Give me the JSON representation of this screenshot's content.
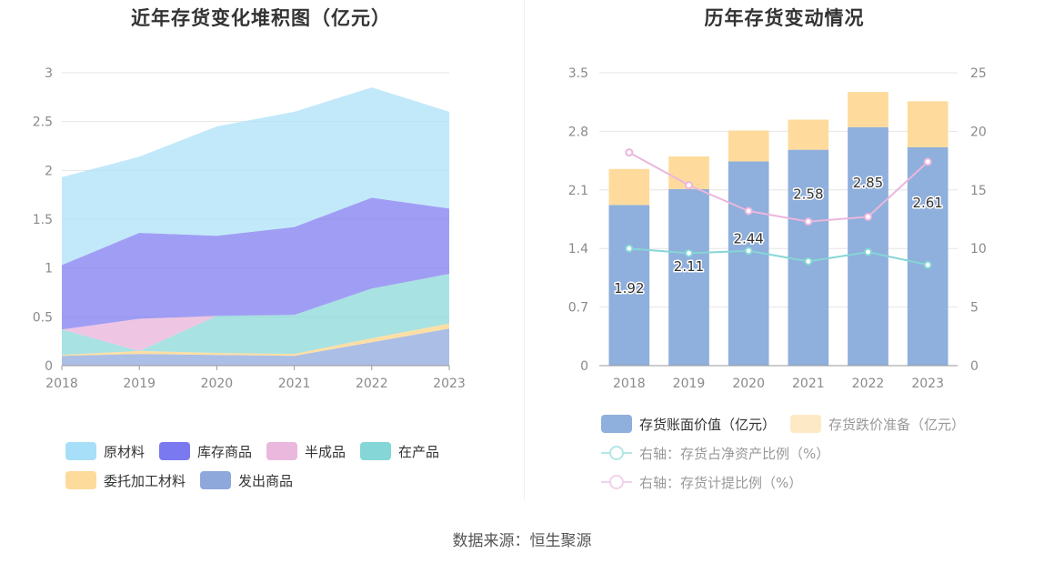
{
  "left_chart": {
    "title": "近年存货变化堆积图（亿元）",
    "legend_rows": [
      [
        "原材料",
        "库存商品",
        "半成品",
        "在产品"
      ],
      [
        "委托加工材料",
        "发出商品"
      ]
    ]
  },
  "right_chart": {
    "title": "历年存货变动情况",
    "legend": {
      "book_value": "存货账面价值（亿元）",
      "reserve": "存货跌价准备（亿元）",
      "ratio_net_assets": "右轴：存货占净资产比例（%）",
      "ratio_provision": "右轴：存货计提比例（%）"
    }
  },
  "source": "数据来源：恒生聚源",
  "colors": {
    "raw_materials": "#a8dff8",
    "finished_goods": "#7b79f0",
    "semi_finished": "#eab8dc",
    "wip": "#85d6d6",
    "outsourced": "#fddb9b",
    "shipped": "#8fa8dc",
    "bar_book": "#8fafdc",
    "bar_reserve": "#fedb9c",
    "line_net_assets": "#86d6d6",
    "line_provision": "#ebb6dd"
  },
  "chart_data": [
    {
      "type": "area",
      "stacked": true,
      "title": "近年存货变化堆积图（亿元）",
      "categories": [
        "2018",
        "2019",
        "2020",
        "2021",
        "2022",
        "2023"
      ],
      "ylim": [
        0,
        3
      ],
      "yticks": [
        "0",
        "0.5",
        "1",
        "1.5",
        "2",
        "2.5",
        "3"
      ],
      "grid": true,
      "legend_position": "bottom",
      "series": [
        {
          "name": "发出商品",
          "values": [
            0.1,
            0.12,
            0.11,
            0.1,
            0.24,
            0.38
          ]
        },
        {
          "name": "委托加工材料",
          "values": [
            0.01,
            0.03,
            0.02,
            0.02,
            0.04,
            0.05
          ]
        },
        {
          "name": "在产品",
          "values": [
            0.26,
            0.0,
            0.38,
            0.4,
            0.51,
            0.51
          ]
        },
        {
          "name": "半成品",
          "values": [
            0.0,
            0.33,
            0.0,
            0.0,
            0.0,
            0.0
          ]
        },
        {
          "name": "库存商品",
          "values": [
            0.66,
            0.88,
            0.82,
            0.9,
            0.93,
            0.67
          ]
        },
        {
          "name": "原材料",
          "values": [
            0.9,
            0.78,
            1.12,
            1.18,
            1.13,
            0.99
          ]
        }
      ]
    },
    {
      "type": "bar",
      "stacked": true,
      "title": "历年存货变动情况",
      "categories": [
        "2018",
        "2019",
        "2020",
        "2021",
        "2022",
        "2023"
      ],
      "ylim": [
        0,
        3.5
      ],
      "yticks": [
        "0",
        "0.7",
        "1.4",
        "2.1",
        "2.8",
        "3.5"
      ],
      "y2lim": [
        0,
        25
      ],
      "y2ticks": [
        "0",
        "5",
        "10",
        "15",
        "20",
        "25"
      ],
      "grid": true,
      "legend_position": "bottom",
      "series": [
        {
          "name": "存货账面价值（亿元）",
          "axis": "left",
          "values": [
            1.92,
            2.11,
            2.44,
            2.58,
            2.85,
            2.61
          ],
          "labels": [
            "1.92",
            "2.11",
            "2.44",
            "2.58",
            "2.85",
            "2.61"
          ]
        },
        {
          "name": "存货跌价准备（亿元）",
          "axis": "left",
          "values": [
            0.43,
            0.39,
            0.37,
            0.36,
            0.42,
            0.55
          ]
        },
        {
          "name": "右轴：存货占净资产比例（%）",
          "type": "line",
          "axis": "right",
          "values": [
            10.0,
            9.6,
            9.8,
            8.9,
            9.7,
            8.6
          ]
        },
        {
          "name": "右轴：存货计提比例（%）",
          "type": "line",
          "axis": "right",
          "values": [
            18.2,
            15.4,
            13.2,
            12.3,
            12.7,
            17.4
          ]
        }
      ]
    }
  ]
}
